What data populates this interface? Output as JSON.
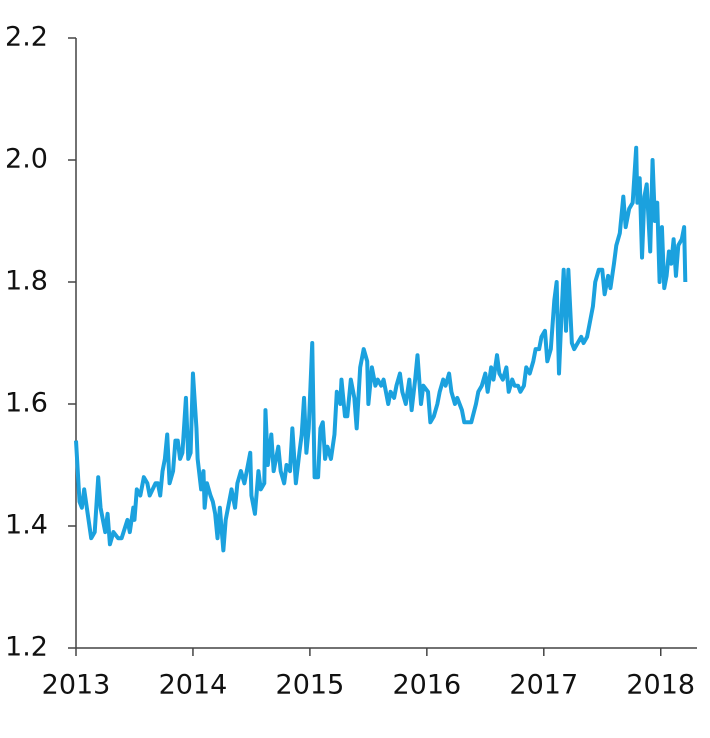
{
  "chart_data": {
    "type": "line",
    "x": [
      2013.0,
      2013.03,
      2013.05,
      2013.07,
      2013.1,
      2013.13,
      2013.16,
      2013.19,
      2013.21,
      2013.25,
      2013.27,
      2013.29,
      2013.32,
      2013.36,
      2013.39,
      2013.44,
      2013.46,
      2013.49,
      2013.5,
      2013.52,
      2013.55,
      2013.58,
      2013.61,
      2013.63,
      2013.68,
      2013.7,
      2013.72,
      2013.74,
      2013.76,
      2013.78,
      2013.8,
      2013.83,
      2013.85,
      2013.87,
      2013.89,
      2013.91,
      2013.94,
      2013.96,
      2013.98,
      2014.0,
      2014.03,
      2014.04,
      2014.07,
      2014.09,
      2014.1,
      2014.12,
      2014.15,
      2014.17,
      2014.19,
      2014.21,
      2014.23,
      2014.26,
      2014.28,
      2014.31,
      2014.33,
      2014.36,
      2014.38,
      2014.41,
      2014.44,
      2014.46,
      2014.49,
      2014.5,
      2014.53,
      2014.56,
      2014.58,
      2014.61,
      2014.62,
      2014.64,
      2014.67,
      2014.69,
      2014.73,
      2014.75,
      2014.78,
      2014.8,
      2014.83,
      2014.85,
      2014.88,
      2014.91,
      2014.93,
      2014.95,
      2014.97,
      2014.99,
      2015.02,
      2015.04,
      2015.07,
      2015.09,
      2015.11,
      2015.13,
      2015.15,
      2015.18,
      2015.21,
      2015.23,
      2015.26,
      2015.27,
      2015.3,
      2015.32,
      2015.35,
      2015.38,
      2015.4,
      2015.43,
      2015.46,
      2015.49,
      2015.5,
      2015.53,
      2015.56,
      2015.58,
      2015.61,
      2015.63,
      2015.67,
      2015.69,
      2015.72,
      2015.74,
      2015.77,
      2015.79,
      2015.82,
      2015.85,
      2015.87,
      2015.9,
      2015.92,
      2015.95,
      2015.97,
      2016.01,
      2016.03,
      2016.06,
      2016.09,
      2016.11,
      2016.14,
      2016.16,
      2016.19,
      2016.21,
      2016.24,
      2016.26,
      2016.3,
      2016.32,
      2016.35,
      2016.38,
      2016.42,
      2016.44,
      2016.47,
      2016.5,
      2016.52,
      2016.55,
      2016.57,
      2016.6,
      2016.62,
      2016.65,
      2016.68,
      2016.7,
      2016.73,
      2016.75,
      2016.78,
      2016.8,
      2016.83,
      2016.85,
      2016.88,
      2016.91,
      2016.93,
      2016.96,
      2016.98,
      2017.01,
      2017.03,
      2017.06,
      2017.09,
      2017.11,
      2017.13,
      2017.15,
      2017.17,
      2017.19,
      2017.21,
      2017.24,
      2017.26,
      2017.29,
      2017.32,
      2017.34,
      2017.37,
      2017.39,
      2017.42,
      2017.44,
      2017.47,
      2017.5,
      2017.52,
      2017.55,
      2017.57,
      2017.6,
      2017.62,
      2017.65,
      2017.68,
      2017.7,
      2017.73,
      2017.76,
      2017.79,
      2017.8,
      2017.82,
      2017.84,
      2017.86,
      2017.88,
      2017.91,
      2017.93,
      2017.95,
      2017.97,
      2017.99,
      2018.01,
      2018.03,
      2018.05,
      2018.07,
      2018.09,
      2018.11,
      2018.13,
      2018.15,
      2018.18,
      2018.2,
      2018.21
    ],
    "values": [
      1.54,
      1.44,
      1.43,
      1.46,
      1.42,
      1.38,
      1.39,
      1.48,
      1.43,
      1.39,
      1.42,
      1.37,
      1.39,
      1.38,
      1.38,
      1.41,
      1.39,
      1.43,
      1.41,
      1.46,
      1.45,
      1.48,
      1.47,
      1.45,
      1.47,
      1.47,
      1.45,
      1.49,
      1.51,
      1.55,
      1.47,
      1.49,
      1.54,
      1.54,
      1.51,
      1.52,
      1.61,
      1.51,
      1.52,
      1.65,
      1.56,
      1.51,
      1.46,
      1.49,
      1.43,
      1.47,
      1.45,
      1.44,
      1.42,
      1.38,
      1.43,
      1.36,
      1.41,
      1.44,
      1.46,
      1.43,
      1.47,
      1.49,
      1.47,
      1.49,
      1.52,
      1.45,
      1.42,
      1.49,
      1.46,
      1.47,
      1.59,
      1.5,
      1.55,
      1.49,
      1.53,
      1.49,
      1.47,
      1.5,
      1.49,
      1.56,
      1.47,
      1.52,
      1.55,
      1.61,
      1.52,
      1.56,
      1.7,
      1.48,
      1.48,
      1.56,
      1.57,
      1.51,
      1.53,
      1.51,
      1.55,
      1.62,
      1.6,
      1.64,
      1.58,
      1.58,
      1.64,
      1.61,
      1.56,
      1.66,
      1.69,
      1.67,
      1.6,
      1.66,
      1.63,
      1.64,
      1.63,
      1.64,
      1.6,
      1.62,
      1.61,
      1.63,
      1.65,
      1.62,
      1.6,
      1.64,
      1.59,
      1.64,
      1.68,
      1.6,
      1.63,
      1.62,
      1.57,
      1.58,
      1.6,
      1.62,
      1.64,
      1.63,
      1.65,
      1.62,
      1.6,
      1.61,
      1.59,
      1.57,
      1.57,
      1.57,
      1.6,
      1.62,
      1.63,
      1.65,
      1.62,
      1.66,
      1.64,
      1.68,
      1.65,
      1.64,
      1.66,
      1.62,
      1.64,
      1.63,
      1.63,
      1.62,
      1.63,
      1.66,
      1.65,
      1.67,
      1.69,
      1.69,
      1.71,
      1.72,
      1.67,
      1.69,
      1.77,
      1.8,
      1.65,
      1.74,
      1.82,
      1.72,
      1.82,
      1.7,
      1.69,
      1.7,
      1.71,
      1.7,
      1.71,
      1.73,
      1.76,
      1.8,
      1.82,
      1.82,
      1.78,
      1.81,
      1.79,
      1.83,
      1.86,
      1.88,
      1.94,
      1.89,
      1.92,
      1.93,
      2.02,
      1.93,
      1.97,
      1.84,
      1.94,
      1.96,
      1.85,
      2.0,
      1.9,
      1.93,
      1.8,
      1.89,
      1.79,
      1.81,
      1.85,
      1.83,
      1.87,
      1.81,
      1.86,
      1.87,
      1.89,
      1.8
    ],
    "color": "#1ba1de",
    "xlim": [
      2013,
      2018.31
    ],
    "xticks": [
      2013,
      2014,
      2015,
      2016,
      2017,
      2018
    ],
    "ylim": [
      1.2,
      2.2
    ],
    "yticks": [
      1.2,
      1.4,
      1.6,
      1.8,
      {
        "value": 2,
        "label": "2.0"
      },
      2.2
    ],
    "grid": false
  }
}
